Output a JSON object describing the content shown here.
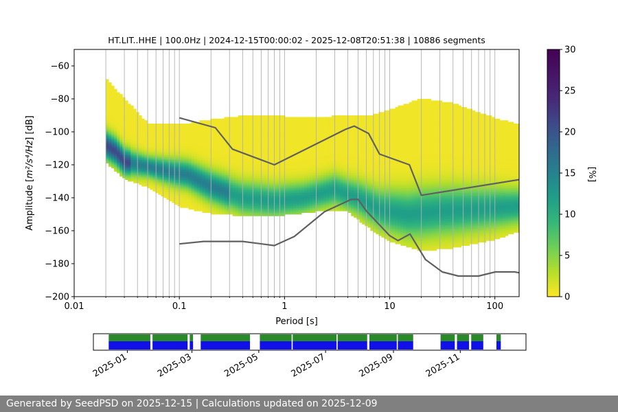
{
  "chart_data": [
    {
      "type": "heatmap",
      "title": "HT.LIT..HHE | 100.0Hz | 2024-12-15T00:00:02 - 2025-12-08T20:51:38 | 10886 segments",
      "xlabel": "Period [s]",
      "ylabel": "Amplitude [m²/s⁴/Hz] [dB]",
      "ylabel_parts": {
        "prefix": "Amplitude [",
        "unit": "m²/s⁴/Hz",
        "suffix": "] [dB]"
      },
      "xscale": "log",
      "xlim": [
        0.01,
        170
      ],
      "ylim": [
        -200,
        -50
      ],
      "x_ticks": [
        "0.01",
        "0.1",
        "1",
        "10",
        "100"
      ],
      "x_tick_values": [
        0.01,
        0.1,
        1,
        10,
        100
      ],
      "y_ticks": [
        "−200",
        "−180",
        "−160",
        "−140",
        "−120",
        "−100",
        "−80",
        "−60"
      ],
      "y_tick_values": [
        -200,
        -180,
        -160,
        -140,
        -120,
        -100,
        -80,
        -60
      ],
      "grid": "vertical lines at each log decade subdivision",
      "colormap": "viridis (0 = yellow, 30 = dark purple)",
      "colorbar": {
        "label": "[%]",
        "range": [
          0,
          30
        ],
        "ticks": [
          "0",
          "5",
          "10",
          "15",
          "20",
          "25",
          "30"
        ]
      },
      "distribution": {
        "x_range": [
          0.02,
          170
        ],
        "envelope": [
          {
            "period": 0.02,
            "min": -118,
            "max": -68
          },
          {
            "period": 0.03,
            "min": -128,
            "max": -80
          },
          {
            "period": 0.05,
            "min": -133,
            "max": -95
          },
          {
            "period": 0.1,
            "min": -145,
            "max": -96
          },
          {
            "period": 0.2,
            "min": -149,
            "max": -93
          },
          {
            "period": 0.5,
            "min": -151,
            "max": -90
          },
          {
            "period": 1.0,
            "min": -150,
            "max": -91
          },
          {
            "period": 2.0,
            "min": -148,
            "max": -92
          },
          {
            "period": 4.0,
            "min": -148,
            "max": -90
          },
          {
            "period": 7.0,
            "min": -160,
            "max": -90
          },
          {
            "period": 10.0,
            "min": -166,
            "max": -87
          },
          {
            "period": 20.0,
            "min": -172,
            "max": -80
          },
          {
            "period": 40.0,
            "min": -170,
            "max": -83
          },
          {
            "period": 100.0,
            "min": -165,
            "max": -92
          },
          {
            "period": 170.0,
            "min": -160,
            "max": -96
          }
        ],
        "mode": [
          {
            "period": 0.02,
            "db": -108
          },
          {
            "period": 0.025,
            "db": -112
          },
          {
            "period": 0.03,
            "db": -118
          },
          {
            "period": 0.05,
            "db": -121
          },
          {
            "period": 0.08,
            "db": -124
          },
          {
            "period": 0.12,
            "db": -126
          },
          {
            "period": 0.2,
            "db": -133
          },
          {
            "period": 0.4,
            "db": -140
          },
          {
            "period": 0.8,
            "db": -142
          },
          {
            "period": 1.5,
            "db": -140
          },
          {
            "period": 3.0,
            "db": -135
          },
          {
            "period": 5.0,
            "db": -140
          },
          {
            "period": 8.0,
            "db": -147
          },
          {
            "period": 15.0,
            "db": -150
          },
          {
            "period": 30.0,
            "db": -148
          },
          {
            "period": 60.0,
            "db": -147
          },
          {
            "period": 170.0,
            "db": -145
          }
        ]
      },
      "series": [
        {
          "x": [
            0.1,
            0.22,
            0.32,
            0.8,
            3.8,
            4.6,
            6.3,
            8.0,
            15.4,
            20.0,
            170.0
          ],
          "y": [
            -91.5,
            -97.5,
            -110.5,
            -120,
            -98.5,
            -96.5,
            -101,
            -113.5,
            -120,
            -138.5,
            -129
          ]
        },
        {
          "x": [
            0.1,
            0.17,
            0.4,
            0.8,
            1.24,
            2.4,
            4.3,
            5.0,
            6.0,
            10.0,
            12.0,
            15.6,
            21.9,
            31.6,
            45.0,
            70.0,
            101.0,
            154.0,
            170.0
          ],
          "y": [
            -168,
            -166.5,
            -166.5,
            -169,
            -163.5,
            -148.5,
            -141,
            -141,
            -148,
            -163,
            -166,
            -162,
            -177.5,
            -185,
            -187.5,
            -187.5,
            -185,
            -185,
            -185.5
          ]
        }
      ]
    },
    {
      "type": "timeline",
      "x_ticks": [
        "2025-01",
        "2025-03",
        "2025-05",
        "2025-07",
        "2025-09",
        "2025-11"
      ],
      "x_tick_dates": [
        "2025-01-01",
        "2025-03-01",
        "2025-05-01",
        "2025-07-01",
        "2025-09-01",
        "2025-11-01"
      ],
      "xlim": [
        "2024-12-01",
        "2025-12-31"
      ],
      "series_colors": {
        "upper": "#2a8a2a",
        "lower": "#1010e8"
      },
      "coverage": [
        [
          "2024-12-15",
          "2025-01-22"
        ],
        [
          "2025-01-24",
          "2025-02-25"
        ],
        [
          "2025-02-27",
          "2025-03-02"
        ],
        [
          "2025-03-09",
          "2025-04-23"
        ],
        [
          "2025-05-02",
          "2025-05-31"
        ],
        [
          "2025-06-01",
          "2025-07-11"
        ],
        [
          "2025-07-12",
          "2025-08-08"
        ],
        [
          "2025-08-10",
          "2025-09-04"
        ],
        [
          "2025-09-05",
          "2025-09-19"
        ],
        [
          "2025-10-14",
          "2025-10-27"
        ],
        [
          "2025-10-29",
          "2025-11-09"
        ],
        [
          "2025-11-11",
          "2025-11-22"
        ],
        [
          "2025-12-04",
          "2025-12-08"
        ]
      ]
    }
  ],
  "footer": {
    "text": "Generated by SeedPSD on 2025-12-15 | Calculations updated on 2025-12-09"
  }
}
